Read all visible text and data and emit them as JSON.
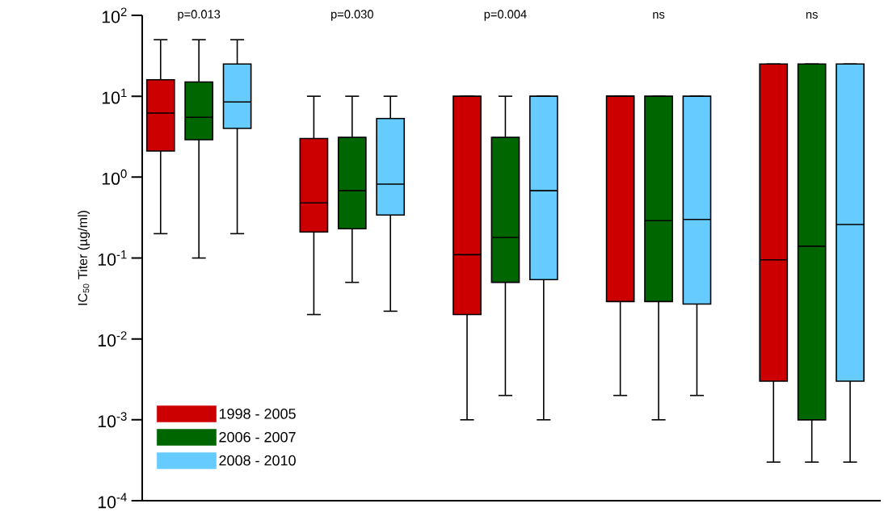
{
  "chart_data": {
    "type": "box",
    "ylabel": "IC$_{50}$ Titer (µg/ml)",
    "categories": [
      null,
      null,
      null,
      null,
      null
    ],
    "annotations": [
      "p=0.013",
      "p=0.030",
      "p=0.004",
      "ns",
      "ns"
    ],
    "log": "y",
    "ylim": [
      0.0001,
      100
    ],
    "yticks": [
      {
        "value": 0.0001,
        "label": "10$^{-4}$"
      },
      {
        "value": 0.001,
        "label": "10$^{-3}$"
      },
      {
        "value": 0.01,
        "label": "10$^{-2}$"
      },
      {
        "value": 0.1,
        "label": "10$^{-1}$"
      },
      {
        "value": 1,
        "label": "10$^{0}$"
      },
      {
        "value": 10,
        "label": "10$^{1}$"
      },
      {
        "value": 100,
        "label": "10$^{2}$"
      }
    ],
    "legend": "bottom left",
    "series": [
      {
        "name": "1998 - 2005",
        "color": "#cc0000",
        "boxes": [
          {
            "low": 0.2,
            "q1": 2.1,
            "median": 6.2,
            "q3": 16,
            "high": 50
          },
          {
            "low": 0.02,
            "q1": 0.21,
            "median": 0.48,
            "q3": 3,
            "high": 10
          },
          {
            "low": 0.001,
            "q1": 0.02,
            "median": 0.11,
            "q3": 10,
            "high": 10
          },
          {
            "low": 0.002,
            "q1": 0.029,
            "median": 10,
            "q3": 10,
            "high": 10
          },
          {
            "low": 0.0003,
            "q1": 0.003,
            "median": 0.095,
            "q3": 25,
            "high": 25
          }
        ]
      },
      {
        "name": "2006 - 2007",
        "color": "#006600",
        "boxes": [
          {
            "low": 0.1,
            "q1": 2.9,
            "median": 5.5,
            "q3": 15,
            "high": 50
          },
          {
            "low": 0.05,
            "q1": 0.23,
            "median": 0.68,
            "q3": 3.1,
            "high": 10
          },
          {
            "low": 0.002,
            "q1": 0.05,
            "median": 0.18,
            "q3": 3.1,
            "high": 10
          },
          {
            "low": 0.001,
            "q1": 0.029,
            "median": 0.29,
            "q3": 10,
            "high": 10
          },
          {
            "low": 0.0003,
            "q1": 0.001,
            "median": 0.14,
            "q3": 25,
            "high": 25
          }
        ]
      },
      {
        "name": "2008 - 2010",
        "color": "#66ccff",
        "boxes": [
          {
            "low": 0.2,
            "q1": 4,
            "median": 8.5,
            "q3": 25,
            "high": 50
          },
          {
            "low": 0.022,
            "q1": 0.34,
            "median": 0.82,
            "q3": 5.3,
            "high": 10
          },
          {
            "low": 0.001,
            "q1": 0.054,
            "median": 0.68,
            "q3": 10,
            "high": 10
          },
          {
            "low": 0.002,
            "q1": 0.027,
            "median": 0.3,
            "q3": 10,
            "high": 10
          },
          {
            "low": 0.0003,
            "q1": 0.003,
            "median": 0.26,
            "q3": 25,
            "high": 25
          }
        ]
      }
    ]
  }
}
